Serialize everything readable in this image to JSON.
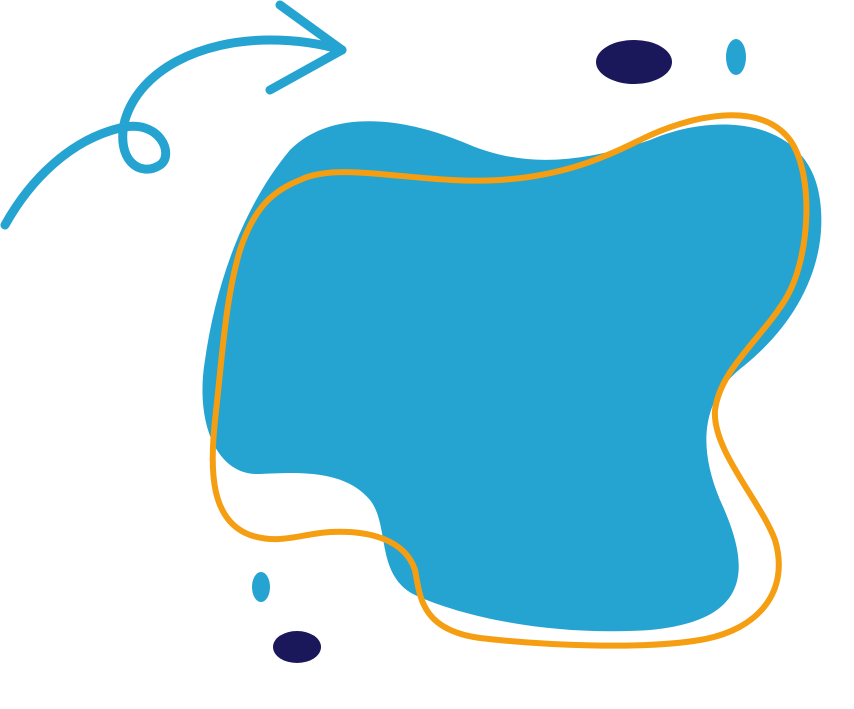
{
  "colors": {
    "blob_fill": "#25A3D1",
    "outline_stroke": "#F59E12",
    "arrow_stroke": "#25A3D1",
    "dot_navy": "#1B175B",
    "dot_blue": "#25A3D1",
    "background": "#FFFFFF"
  },
  "icons": {
    "arrow": "curly-arrow-icon"
  }
}
